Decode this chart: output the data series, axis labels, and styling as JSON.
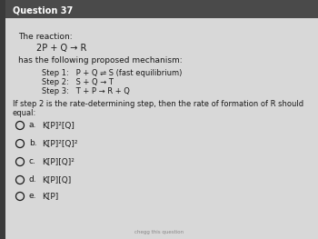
{
  "title": "Question 37",
  "bg_color": "#c8c8c8",
  "header_bg": "#4a4a4a",
  "body_bg": "#d8d8d8",
  "text_color": "#1a1a1a",
  "title_color": "#ffffff",
  "left_bar_color": "#3a3a3a",
  "reaction_label": "The reaction:",
  "reaction": "2P + Q → R",
  "mechanism_label": "has the following proposed mechanism:",
  "steps": [
    "Step 1:   P + Q ⇌ S (fast equilibrium)",
    "Step 2:   S + Q → T",
    "Step 3:   T + P → R + Q"
  ],
  "question": "If step 2 is the rate-determining step, then the rate of formation of R should equal:",
  "option_labels": [
    "a.",
    "b.",
    "c.",
    "d.",
    "e."
  ],
  "option_texts": [
    "K[P]²[Q]",
    "K[P]²[Q]²",
    "K[P][Q]²",
    "K[P][Q]",
    "K[P]"
  ],
  "watermark": "chegg this question"
}
